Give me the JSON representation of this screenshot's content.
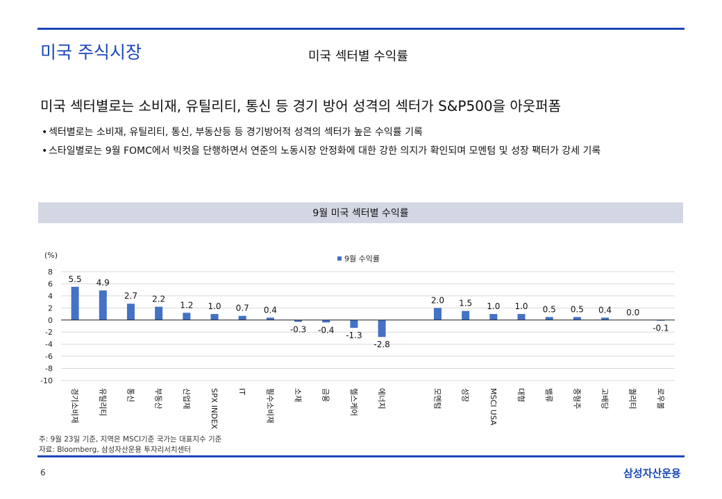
{
  "header": {
    "section_title": "미국 주식시장",
    "slide_subtitle": "미국 섹터별 수익률"
  },
  "headline": "미국 섹터별로는 소비재, 유틸리티, 통신 등 경기 방어 성격의 섹터가 S&P500을 아웃퍼폼",
  "bullets": [
    "섹터별로는 소비재, 유틸리티, 통신, 부동산등 등 경기방어적 성격의 섹터가 높은 수익률 기록",
    "스타일별로는 9월 FOMC에서 빅컷을 단행하면서 연준의 노동시장 안정화에 대한 강한 의지가 확인되며 모멘텀 및 성장 팩터가 강세 기록"
  ],
  "chart_header": "9월 미국 섹터별 수익률",
  "chart_data": {
    "type": "bar",
    "title": "9월 미국 섹터별 수익률",
    "ylabel": "(%)",
    "ylim": [
      -10,
      8
    ],
    "yticks": [
      8,
      6,
      4,
      2,
      0,
      -2,
      -4,
      -6,
      -8,
      -10
    ],
    "grid": true,
    "legend_position": "top",
    "categories": [
      "경기소비재",
      "유틸리티",
      "통신",
      "부동산",
      "산업재",
      "SPX INDEX",
      "IT",
      "필수소비재",
      "소재",
      "금융",
      "헬스케어",
      "에너지",
      "",
      "모멘텀",
      "성장",
      "MSCI USA",
      "대형",
      "밸류",
      "중형주",
      "고배당",
      "퀄리티",
      "로우볼"
    ],
    "series": [
      {
        "name": "9월 수익률",
        "color": "#4472c4",
        "values": [
          5.5,
          4.9,
          2.7,
          2.2,
          1.2,
          1.0,
          0.7,
          0.4,
          -0.3,
          -0.4,
          -1.3,
          -2.8,
          null,
          2.0,
          1.5,
          1.0,
          1.0,
          0.5,
          0.5,
          0.4,
          0.0,
          -0.1
        ],
        "labels": [
          "5.5",
          "4.9",
          "2.7",
          "2.2",
          "1.2",
          "1.0",
          "0.7",
          "0.4",
          "-0.3",
          "-0.4",
          "-1.3",
          "-2.8",
          "",
          "2.0",
          "1.5",
          "1.0",
          "1.0",
          "0.5",
          "0.5",
          "0.4",
          "0.0",
          "-0.1"
        ]
      }
    ]
  },
  "notes": {
    "note": "주: 9월 23일 기준, 지역은 MSCI기준 국가는 대표지수 기준",
    "source": "자료: Bloomberg, 삼성자산운용 투자리서치센터"
  },
  "footer": {
    "page_number": "6",
    "brand": "삼성자산운용"
  }
}
